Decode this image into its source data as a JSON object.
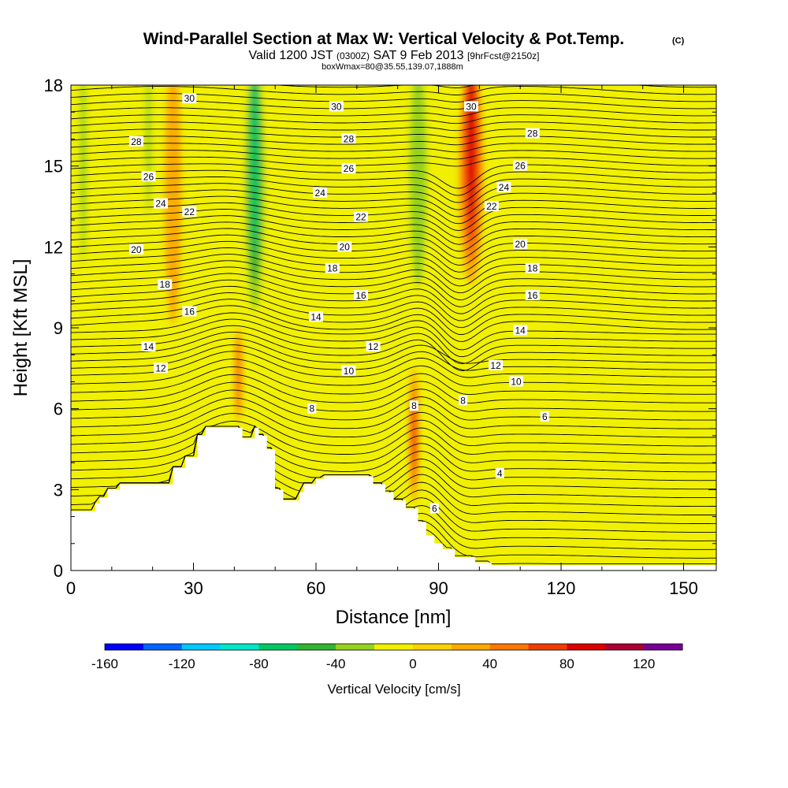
{
  "chart_data": {
    "type": "heatmap",
    "title": "Wind-Parallel Section at Max W: Vertical Velocity & Pot.Temp.",
    "title_suffix": "(C)",
    "subtitle": {
      "part1": "Valid 1200 JST",
      "part2": "(0300Z)",
      "part3": "SAT 9 Feb 2013",
      "part4": "[9hrFcst@2150z]"
    },
    "subtitle2": "boxWmax=80@35.55,139.07,1888m",
    "xlabel": "Distance [nm]",
    "ylabel": "Height [Kft MSL]",
    "xlim": [
      0,
      158
    ],
    "ylim": [
      0,
      18
    ],
    "x_ticks": [
      "0",
      "30",
      "60",
      "90",
      "120",
      "150"
    ],
    "y_ticks": [
      "0",
      "3",
      "6",
      "9",
      "12",
      "15",
      "18"
    ],
    "colorbar": {
      "label": "Vertical Velocity [cm/s]",
      "min": -160,
      "max": 140,
      "step": 20,
      "tick_labels": [
        "-160",
        "-120",
        "-80",
        "-40",
        "0",
        "40",
        "80",
        "120"
      ],
      "colors": [
        "#0000ff",
        "#0064ff",
        "#00c8ff",
        "#00e6c8",
        "#00c864",
        "#32b432",
        "#96d21e",
        "#f0f000",
        "#fcd200",
        "#fcaa00",
        "#fc7800",
        "#f03c00",
        "#dc0000",
        "#aa0032",
        "#780096"
      ]
    },
    "background_value": 5,
    "w_features": [
      {
        "name": "descent-a",
        "x": 3,
        "y0": 11.5,
        "y1": 18,
        "w": 2.5,
        "value": -40
      },
      {
        "name": "descent-b",
        "x": 19,
        "y0": 13.5,
        "y1": 18,
        "w": 2,
        "value": -40
      },
      {
        "name": "ascent-a",
        "x": 25,
        "y0": 10,
        "y1": 18,
        "w": 4,
        "value": 30
      },
      {
        "name": "descent-c",
        "x": 45,
        "y0": 9.5,
        "y1": 18,
        "w": 6,
        "value": -80
      },
      {
        "name": "ascent-b",
        "x": 41,
        "y0": 5.5,
        "y1": 9,
        "w": 2,
        "value": 40
      },
      {
        "name": "descent-d",
        "x": 85,
        "y0": 10.5,
        "y1": 18,
        "w": 7,
        "value": -40
      },
      {
        "name": "ascent-c",
        "x": 98,
        "y0": 11.5,
        "y1": 18,
        "w": 6,
        "value": 90
      },
      {
        "name": "ascent-d",
        "x": 84,
        "y0": 2.5,
        "y1": 7.5,
        "w": 2.5,
        "value": 70
      }
    ],
    "terrain_height_kft": [
      [
        0,
        2.2
      ],
      [
        6,
        2.2
      ],
      [
        6,
        2.5
      ],
      [
        7,
        2.5
      ],
      [
        7,
        2.7
      ],
      [
        9,
        2.7
      ],
      [
        9,
        3.0
      ],
      [
        12,
        3.0
      ],
      [
        12,
        3.2
      ],
      [
        25,
        3.2
      ],
      [
        25,
        3.8
      ],
      [
        28,
        3.8
      ],
      [
        28,
        4.2
      ],
      [
        31,
        4.2
      ],
      [
        31,
        5.0
      ],
      [
        33,
        5.0
      ],
      [
        33,
        5.3
      ],
      [
        42,
        5.3
      ],
      [
        42,
        4.9
      ],
      [
        45,
        4.9
      ],
      [
        45,
        5.3
      ],
      [
        46,
        5.3
      ],
      [
        46,
        5.0
      ],
      [
        48,
        5.0
      ],
      [
        48,
        4.5
      ],
      [
        50,
        4.5
      ],
      [
        50,
        3.0
      ],
      [
        52,
        3.0
      ],
      [
        52,
        2.6
      ],
      [
        56,
        2.6
      ],
      [
        56,
        2.9
      ],
      [
        57,
        2.9
      ],
      [
        57,
        3.2
      ],
      [
        60,
        3.2
      ],
      [
        60,
        3.4
      ],
      [
        62,
        3.4
      ],
      [
        62,
        3.5
      ],
      [
        74,
        3.5
      ],
      [
        74,
        3.2
      ],
      [
        77,
        3.2
      ],
      [
        77,
        2.9
      ],
      [
        79,
        2.9
      ],
      [
        79,
        2.6
      ],
      [
        82,
        2.6
      ],
      [
        82,
        2.3
      ],
      [
        85,
        2.3
      ],
      [
        85,
        1.8
      ],
      [
        87,
        1.8
      ],
      [
        87,
        1.3
      ],
      [
        89,
        1.3
      ],
      [
        89,
        1.0
      ],
      [
        91,
        1.0
      ],
      [
        91,
        0.8
      ],
      [
        94,
        0.8
      ],
      [
        94,
        0.5
      ],
      [
        99,
        0.5
      ],
      [
        99,
        0.3
      ],
      [
        103,
        0.3
      ],
      [
        103,
        0.2
      ],
      [
        158,
        0.2
      ]
    ],
    "potential_temperature": {
      "label_values": [
        "4",
        "6",
        "8",
        "10",
        "12",
        "14",
        "16",
        "18",
        "20",
        "22",
        "24",
        "26",
        "28",
        "30"
      ]
    },
    "contour_labels": [
      {
        "t": "30",
        "x": 29,
        "y": 17.5
      },
      {
        "t": "30",
        "x": 65,
        "y": 17.2
      },
      {
        "t": "30",
        "x": 98,
        "y": 17.2
      },
      {
        "t": "28",
        "x": 16,
        "y": 15.9
      },
      {
        "t": "28",
        "x": 68,
        "y": 16.0
      },
      {
        "t": "28",
        "x": 113,
        "y": 16.2
      },
      {
        "t": "26",
        "x": 19,
        "y": 14.6
      },
      {
        "t": "26",
        "x": 68,
        "y": 14.9
      },
      {
        "t": "26",
        "x": 110,
        "y": 15.0
      },
      {
        "t": "24",
        "x": 22,
        "y": 13.6
      },
      {
        "t": "24",
        "x": 61,
        "y": 14.0
      },
      {
        "t": "24",
        "x": 106,
        "y": 14.2
      },
      {
        "t": "22",
        "x": 29,
        "y": 13.3
      },
      {
        "t": "22",
        "x": 71,
        "y": 13.1
      },
      {
        "t": "22",
        "x": 103,
        "y": 13.5
      },
      {
        "t": "20",
        "x": 16,
        "y": 11.9
      },
      {
        "t": "20",
        "x": 67,
        "y": 12.0
      },
      {
        "t": "20",
        "x": 110,
        "y": 12.1
      },
      {
        "t": "18",
        "x": 23,
        "y": 10.6
      },
      {
        "t": "18",
        "x": 64,
        "y": 11.2
      },
      {
        "t": "18",
        "x": 113,
        "y": 11.2
      },
      {
        "t": "16",
        "x": 29,
        "y": 9.6
      },
      {
        "t": "16",
        "x": 71,
        "y": 10.2
      },
      {
        "t": "16",
        "x": 113,
        "y": 10.2
      },
      {
        "t": "14",
        "x": 19,
        "y": 8.3
      },
      {
        "t": "14",
        "x": 60,
        "y": 9.4
      },
      {
        "t": "14",
        "x": 110,
        "y": 8.9
      },
      {
        "t": "12",
        "x": 22,
        "y": 7.5
      },
      {
        "t": "12",
        "x": 74,
        "y": 8.3
      },
      {
        "t": "12",
        "x": 104,
        "y": 7.6
      },
      {
        "t": "10",
        "x": 68,
        "y": 7.4
      },
      {
        "t": "10",
        "x": 109,
        "y": 7.0
      },
      {
        "t": "8",
        "x": 59,
        "y": 6.0
      },
      {
        "t": "8",
        "x": 84,
        "y": 6.1
      },
      {
        "t": "8",
        "x": 96,
        "y": 6.3
      },
      {
        "t": "6",
        "x": 116,
        "y": 5.7
      },
      {
        "t": "4",
        "x": 105,
        "y": 3.6
      },
      {
        "t": "6",
        "x": 89,
        "y": 2.3
      }
    ]
  }
}
